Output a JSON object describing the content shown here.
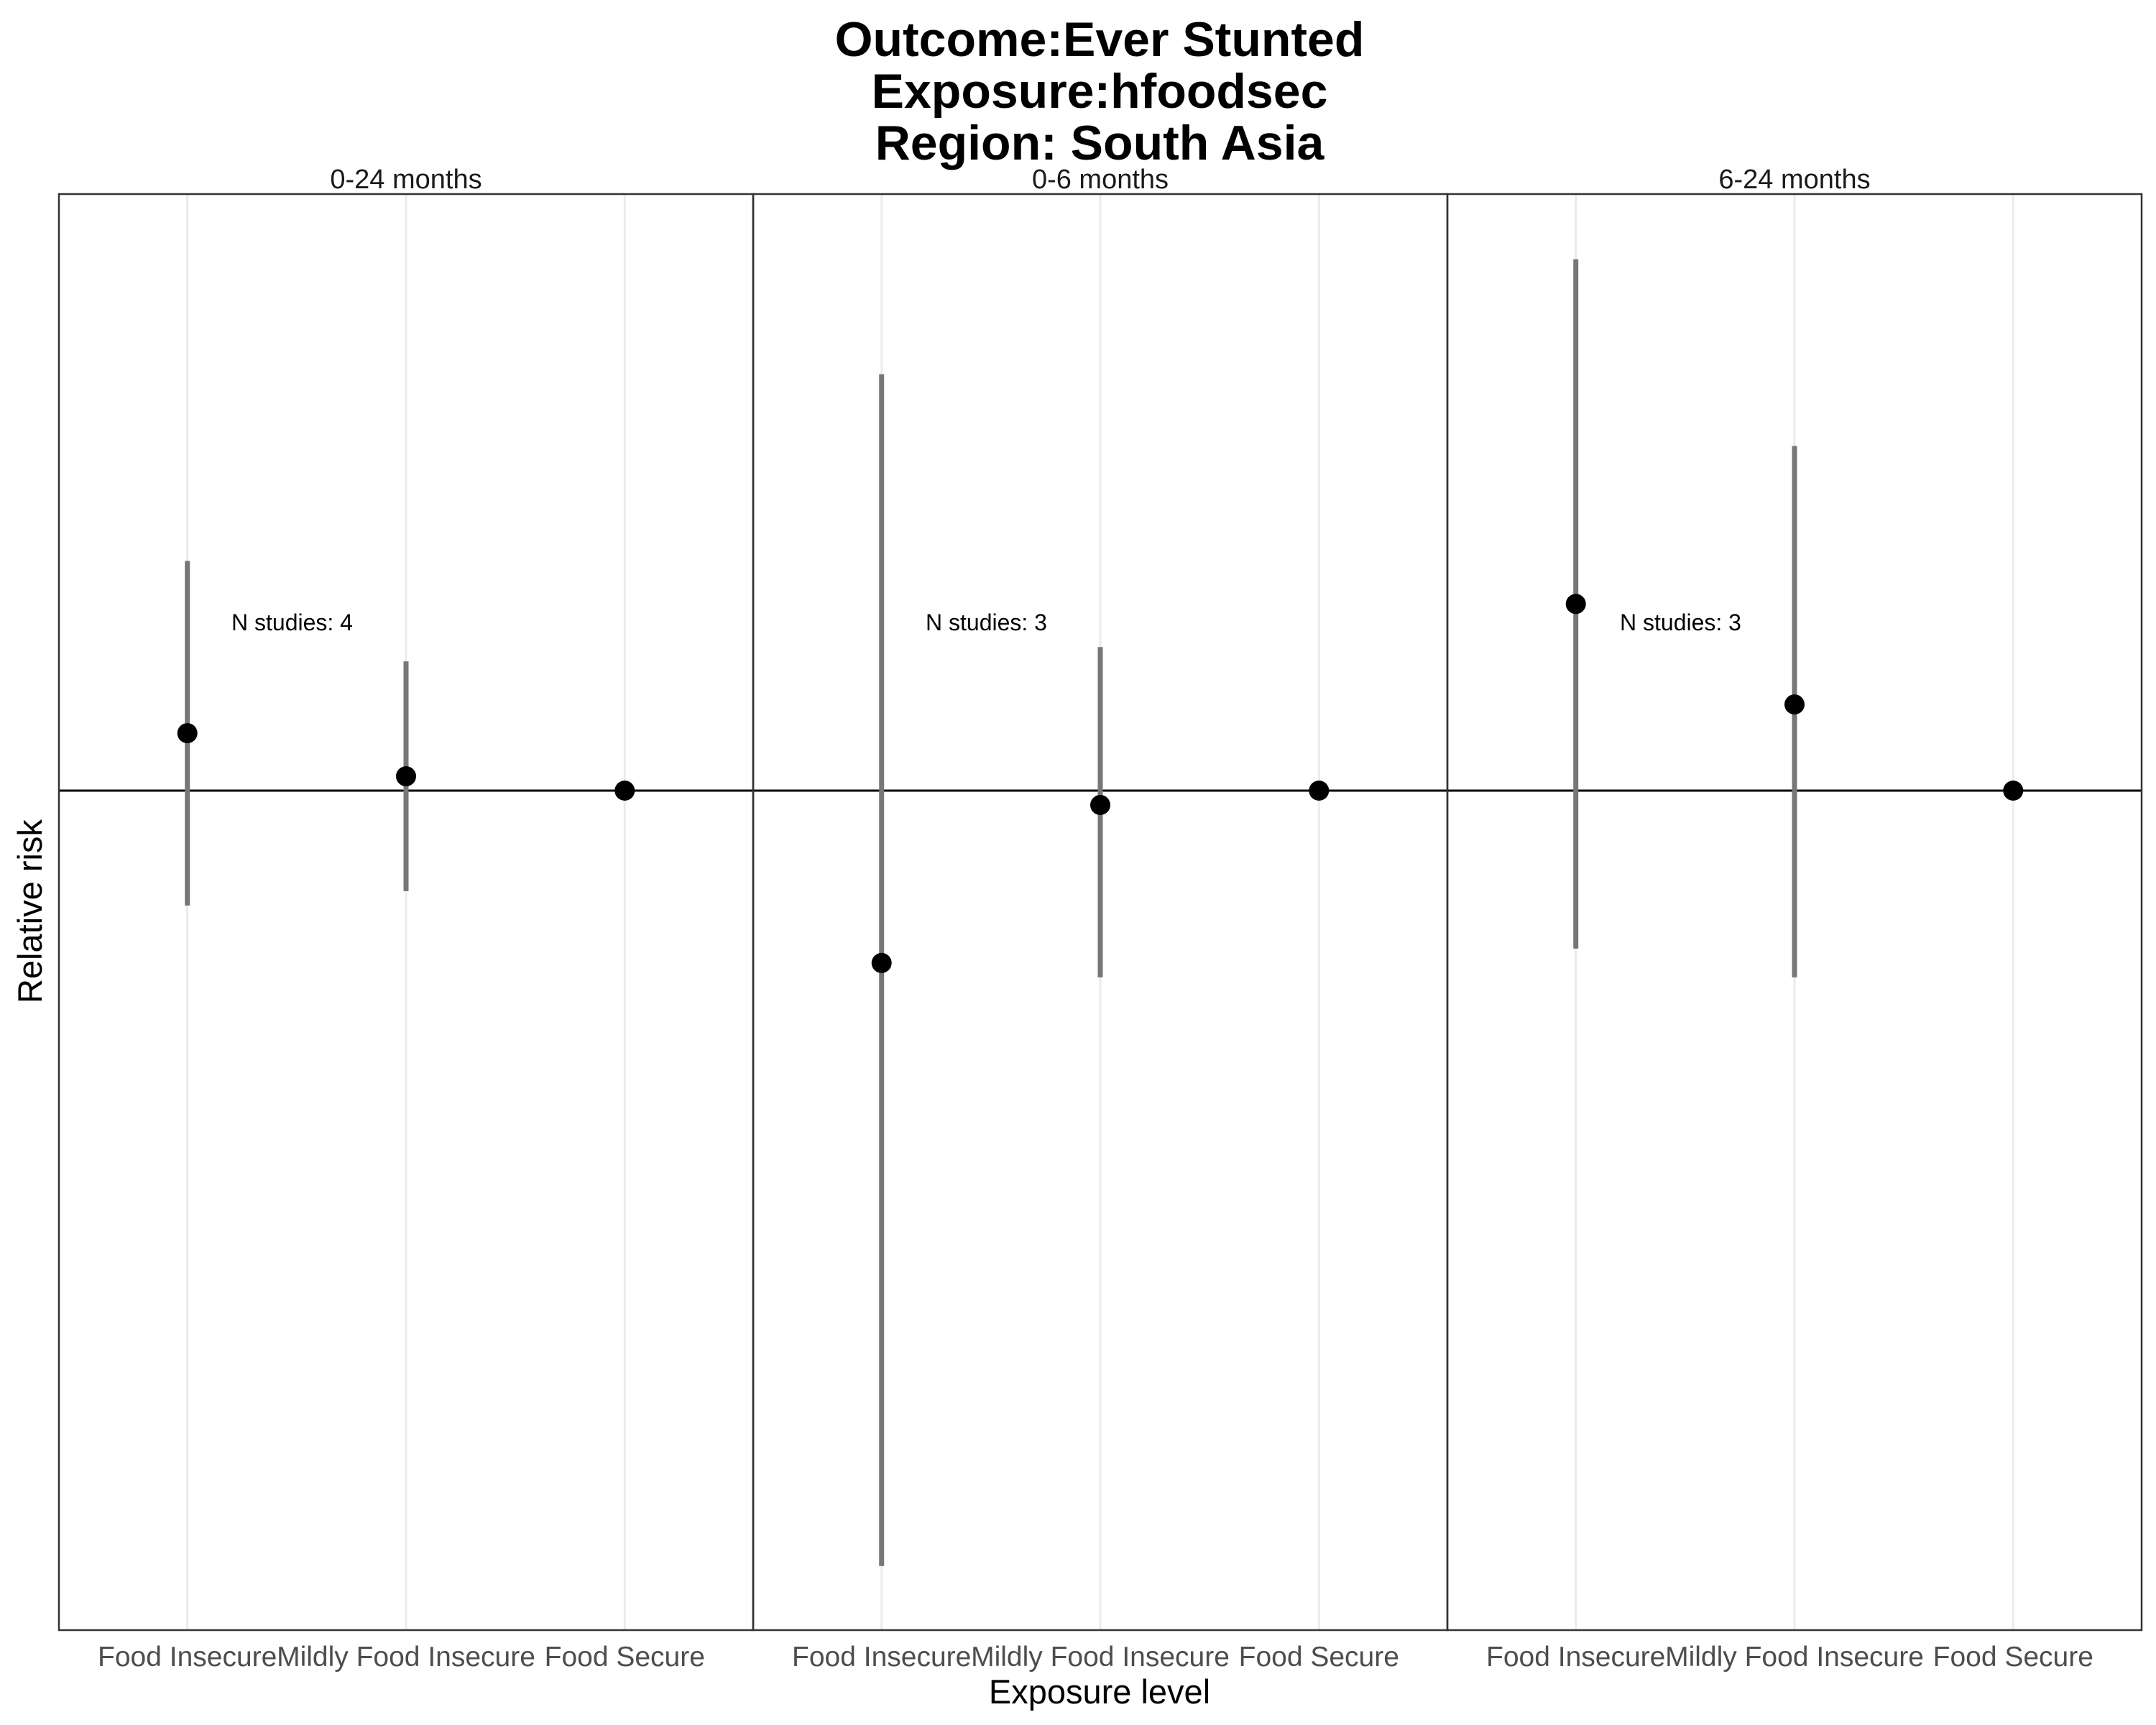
{
  "chart_data": {
    "type": "scatter",
    "title": [
      "Outcome:Ever Stunted",
      "Exposure:hfoodsec",
      "Region: South Asia"
    ],
    "xlabel": "Exposure level",
    "ylabel": "Relative risk",
    "categories": [
      "Food Insecure",
      "Mildly Food Insecure",
      "Food Secure"
    ],
    "y_axis_tick_labels_shown": false,
    "reference_line": 1.0,
    "ylim": [
      0.5,
      1.5
    ],
    "grid": true,
    "legend": "none",
    "panels": [
      {
        "label": "0-24 months",
        "annotation": "N studies: 4",
        "points": [
          {
            "category": "Food Insecure",
            "estimate": 1.04,
            "ci_lower": 0.92,
            "ci_upper": 1.16
          },
          {
            "category": "Mildly Food Insecure",
            "estimate": 1.01,
            "ci_lower": 0.93,
            "ci_upper": 1.09
          },
          {
            "category": "Food Secure",
            "estimate": 1.0,
            "ci_lower": 1.0,
            "ci_upper": 1.0
          }
        ]
      },
      {
        "label": "0-6 months",
        "annotation": "N studies: 3",
        "points": [
          {
            "category": "Food Insecure",
            "estimate": 0.88,
            "ci_lower": 0.46,
            "ci_upper": 1.29
          },
          {
            "category": "Mildly Food Insecure",
            "estimate": 0.99,
            "ci_lower": 0.87,
            "ci_upper": 1.1
          },
          {
            "category": "Food Secure",
            "estimate": 1.0,
            "ci_lower": 1.0,
            "ci_upper": 1.0
          }
        ]
      },
      {
        "label": "6-24 months",
        "annotation": "N studies: 3",
        "points": [
          {
            "category": "Food Insecure",
            "estimate": 1.13,
            "ci_lower": 0.89,
            "ci_upper": 1.37
          },
          {
            "category": "Mildly Food Insecure",
            "estimate": 1.06,
            "ci_lower": 0.87,
            "ci_upper": 1.24
          },
          {
            "category": "Food Secure",
            "estimate": 1.0,
            "ci_lower": 1.0,
            "ci_upper": 1.0
          }
        ]
      }
    ]
  }
}
